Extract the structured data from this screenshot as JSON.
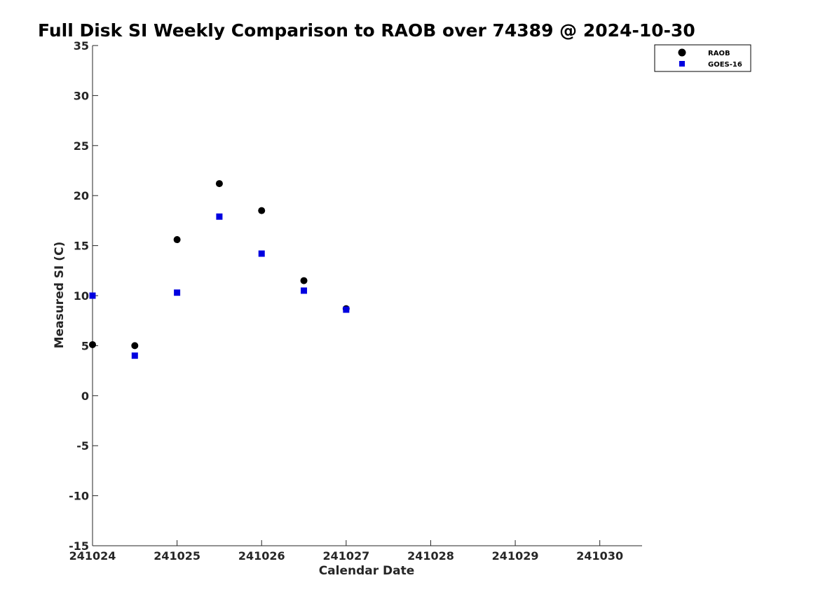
{
  "chart_data": {
    "type": "scatter",
    "title": "Full Disk SI Weekly Comparison to RAOB over 74389 @ 2024-10-30",
    "xlabel": "Calendar Date",
    "ylabel": "Measured SI (C)",
    "x_tick_labels": [
      "241024",
      "241025",
      "241026",
      "241027",
      "241028",
      "241029",
      "241030"
    ],
    "x_tick_values": [
      0,
      1,
      2,
      3,
      4,
      5,
      6
    ],
    "xlim": [
      0,
      6.5
    ],
    "ylim": [
      -15,
      35
    ],
    "y_ticks": [
      -15,
      -10,
      -5,
      0,
      5,
      10,
      15,
      20,
      25,
      30,
      35
    ],
    "grid": false,
    "legend_position": "top-right",
    "series": [
      {
        "name": "RAOB",
        "marker": "circle",
        "color": "#000000",
        "x": [
          0,
          0.5,
          1,
          1.5,
          2,
          2.5,
          3
        ],
        "y": [
          5.1,
          5.0,
          15.6,
          21.2,
          18.5,
          11.5,
          8.7
        ]
      },
      {
        "name": "GOES-16",
        "marker": "square",
        "color": "#0000e0",
        "x": [
          0,
          0.5,
          1,
          1.5,
          2,
          2.5,
          3
        ],
        "y": [
          10.0,
          4.0,
          10.3,
          17.9,
          14.2,
          10.5,
          8.6
        ]
      }
    ]
  }
}
